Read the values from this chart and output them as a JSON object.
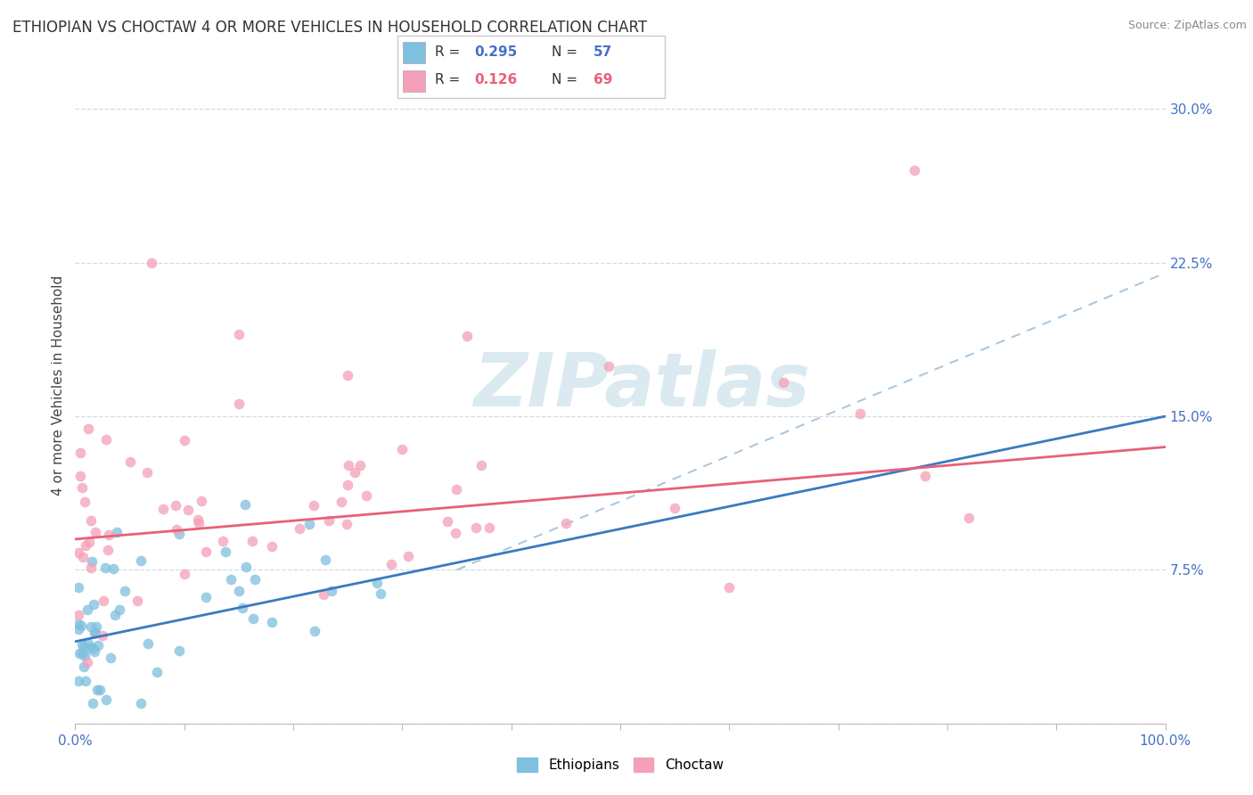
{
  "title": "ETHIOPIAN VS CHOCTAW 4 OR MORE VEHICLES IN HOUSEHOLD CORRELATION CHART",
  "source": "Source: ZipAtlas.com",
  "ylabel": "4 or more Vehicles in Household",
  "xlim": [
    0,
    100
  ],
  "ylim": [
    0,
    33.0
  ],
  "yticks": [
    0,
    7.5,
    15.0,
    22.5,
    30.0
  ],
  "legend_r1": "0.295",
  "legend_n1": "57",
  "legend_r2": "0.126",
  "legend_n2": "69",
  "ethiopian_color": "#7fbfdf",
  "choctaw_color": "#f4a0b8",
  "trendline_ethiopian_color": "#3a7abf",
  "trendline_choctaw_color": "#e8607a",
  "dash_color": "#aac8e0",
  "watermark_color": "#d8e8f0",
  "background_color": "#ffffff",
  "grid_color": "#d0dce8",
  "title_fontsize": 12,
  "axis_label_fontsize": 11,
  "tick_fontsize": 11,
  "legend_fontsize": 12,
  "eth_trend_x0": 0,
  "eth_trend_y0": 4.0,
  "eth_trend_x1": 100,
  "eth_trend_y1": 15.0,
  "cho_trend_x0": 0,
  "cho_trend_y0": 9.0,
  "cho_trend_x1": 100,
  "cho_trend_y1": 13.5,
  "dash_x0": 35,
  "dash_y0": 7.5,
  "dash_x1": 100,
  "dash_y1": 22.0
}
